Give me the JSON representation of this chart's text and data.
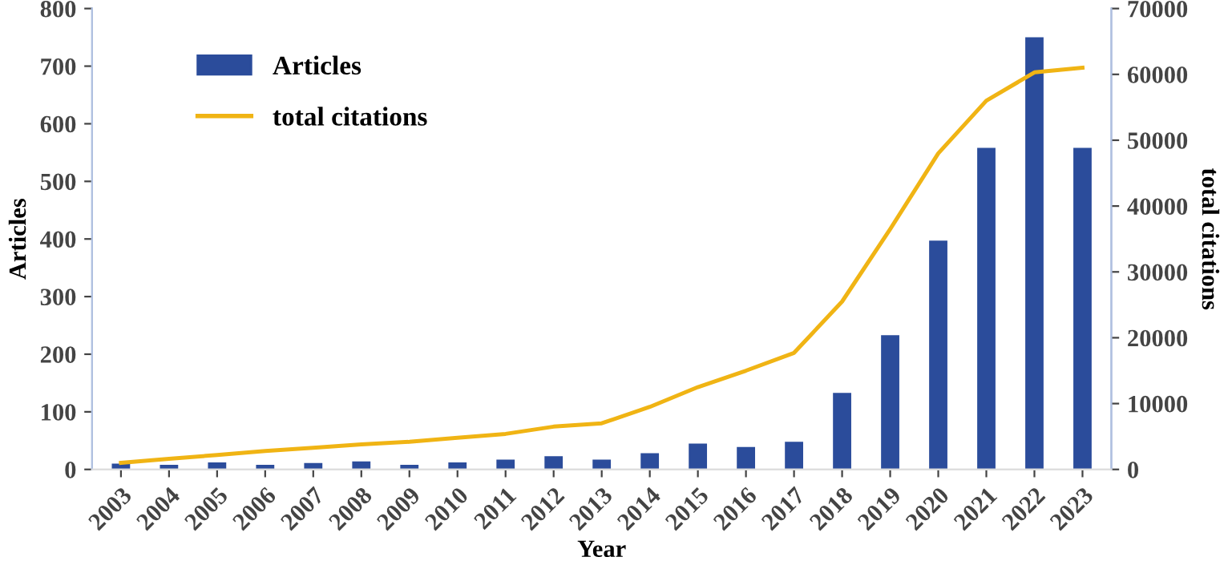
{
  "chart_data": {
    "type": "bar",
    "xlabel": "Year",
    "ylabel": "Articles",
    "y2label": "total citations",
    "categories": [
      "2003",
      "2004",
      "2005",
      "2006",
      "2007",
      "2008",
      "2009",
      "2010",
      "2011",
      "2012",
      "2013",
      "2014",
      "2015",
      "2016",
      "2017",
      "2018",
      "2019",
      "2020",
      "2021",
      "2022",
      "2023"
    ],
    "series": [
      {
        "name": "Articles",
        "color": "#2b4c9b",
        "values": [
          10,
          8,
          12,
          8,
          11,
          14,
          8,
          12,
          17,
          23,
          17,
          28,
          45,
          39,
          48,
          133,
          233,
          397,
          558,
          750,
          558
        ]
      },
      {
        "name": "total citations",
        "type": "line",
        "axis": "y2",
        "color": "#f0b414",
        "values": [
          1000,
          1600,
          2200,
          2800,
          3300,
          3800,
          4200,
          4800,
          5400,
          6500,
          7000,
          9500,
          12500,
          15000,
          17700,
          25500,
          36500,
          48000,
          56000,
          60300,
          61000
        ]
      }
    ],
    "ylim": [
      0,
      800
    ],
    "yticks": [
      0,
      100,
      200,
      300,
      400,
      500,
      600,
      700,
      800
    ],
    "y2lim": [
      0,
      70000
    ],
    "y2ticks": [
      0,
      10000,
      20000,
      30000,
      40000,
      50000,
      60000,
      70000
    ],
    "legend": "top left",
    "grid": false
  }
}
